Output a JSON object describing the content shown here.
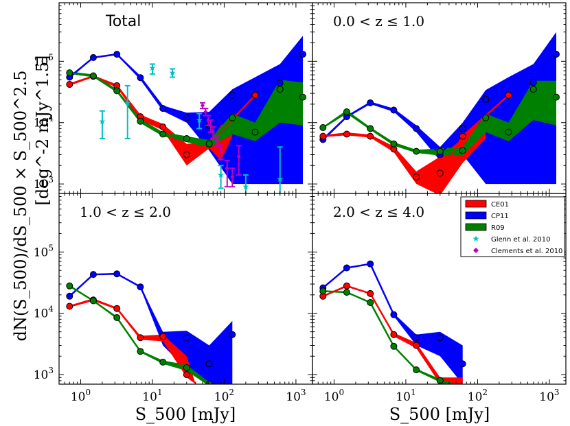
{
  "chart_data": {
    "type": "line",
    "xlabel": "S_500 [mJy]",
    "ylabel_left_units": "[deg^-2 mJy^1.5]",
    "ylabel_formula": "dN(S_500)/dS_500 × S_500^2.5",
    "xscale": "log",
    "yscale": "log",
    "xlim": [
      0.5,
      1700
    ],
    "ylim_total": [
      700,
      900000
    ],
    "ylim_lower": [
      700,
      900000
    ],
    "x_ticks": [
      {
        "value": 1,
        "base": "10",
        "exp": "0"
      },
      {
        "value": 10,
        "base": "10",
        "exp": "1"
      },
      {
        "value": 100,
        "base": "10",
        "exp": "2"
      },
      {
        "value": 1000,
        "base": "10",
        "exp": "3"
      }
    ],
    "y_ticks": [
      {
        "value": 1000,
        "base": "10",
        "exp": "3"
      },
      {
        "value": 10000,
        "base": "10",
        "exp": "4"
      },
      {
        "value": 100000,
        "base": "10",
        "exp": "5"
      }
    ],
    "legend": [
      {
        "label": "CE01",
        "color": "#ff0000",
        "kind": "band"
      },
      {
        "label": "CP11",
        "color": "#0000ff",
        "kind": "band"
      },
      {
        "label": "R09",
        "color": "#008000",
        "kind": "band"
      },
      {
        "label": "Glenn et al. 2010",
        "color": "#00bfbf",
        "kind": "star"
      },
      {
        "label": "Clements et al. 2010",
        "color": "#bf00bf",
        "kind": "diamond"
      }
    ],
    "panels": [
      {
        "label": "Total",
        "label_style": "sans",
        "series": [
          {
            "name": "CE01",
            "color": "#ff0000",
            "x": [
              0.7,
              1.5,
              3.2,
              6.8,
              14,
              30,
              62,
              130,
              270
            ],
            "y": [
              42000,
              57000,
              40000,
              12500,
              8500,
              3000,
              4500,
              null,
              28000
            ],
            "band_x": [
              0.7,
              1.5,
              3.2,
              6.8,
              14,
              30,
              62,
              90,
              130
            ],
            "band_lo": [
              40000,
              55000,
              37000,
              11000,
              7500,
              2000,
              3800,
              2400,
              6000
            ],
            "band_hi": [
              44000,
              59000,
              42000,
              13500,
              9500,
              4500,
              4800,
              9000,
              11500
            ]
          },
          {
            "name": "CP11",
            "color": "#0000ff",
            "x": [
              0.7,
              1.5,
              3.2,
              6.8,
              14,
              30,
              62,
              130,
              600,
              1250
            ],
            "y": [
              55000,
              115000,
              130000,
              54000,
              17000,
              12000,
              9000,
              28000,
              44000,
              130000
            ],
            "band_x": [
              0.7,
              1.5,
              3.2,
              6.8,
              14,
              30,
              62,
              130,
              600,
              1250
            ],
            "band_lo": [
              52000,
              112000,
              126000,
              50000,
              15500,
              10000,
              3500,
              1000,
              1000,
              1000
            ],
            "band_hi": [
              58000,
              118000,
              135000,
              58000,
              19000,
              14500,
              15000,
              35000,
              90000,
              260000
            ]
          },
          {
            "name": "R09",
            "color": "#008000",
            "x": [
              0.7,
              1.5,
              3.2,
              6.8,
              14,
              30,
              62,
              130,
              270,
              600,
              1250
            ],
            "y": [
              65000,
              58000,
              33000,
              10500,
              6500,
              5500,
              4500,
              12000,
              7000,
              35000,
              26000
            ],
            "band_x": [
              0.7,
              1.5,
              3.2,
              6.8,
              14,
              30,
              62,
              130,
              270,
              600,
              1250
            ],
            "band_lo": [
              62000,
              55000,
              31000,
              9800,
              6000,
              4800,
              3900,
              6500,
              5000,
              10000,
              9000
            ],
            "band_hi": [
              68000,
              61000,
              35000,
              11500,
              7000,
              6000,
              5200,
              14000,
              10000,
              50000,
              45000
            ]
          }
        ],
        "markers": [
          {
            "name": "Glenn et al. 2010",
            "color": "#00bfbf",
            "symbol": "star",
            "x": [
              2,
              4.5,
              10,
              19,
              45,
              90,
              200,
              600
            ],
            "y": [
              10500,
              21000,
              78000,
              65000,
              11000,
              1400,
              900,
              1200
            ],
            "y_lo": [
              5500,
              5500,
              62000,
              55000,
              8000,
              850,
              600,
              600
            ],
            "y_hi": [
              15500,
              40000,
              90000,
              75000,
              14000,
              2000,
              1400,
              4000
            ]
          },
          {
            "name": "Clements et al. 2010",
            "color": "#bf00bf",
            "symbol": "diamond",
            "x": [
              50,
              55,
              60,
              65,
              70,
              80,
              90,
              110,
              130,
              160
            ],
            "y": [
              19000,
              15000,
              11000,
              9000,
              7000,
              5000,
              3500,
              1800,
              1300,
              2800
            ],
            "y_lo": [
              17000,
              13000,
              9000,
              7000,
              5500,
              4000,
              2500,
              900,
              900,
              1400
            ],
            "y_hi": [
              21000,
              17000,
              13000,
              11000,
              8500,
              6000,
              4500,
              2400,
              1800,
              4200
            ]
          }
        ]
      },
      {
        "label": "0.0 < z ≤ 1.0",
        "label_style": "serif",
        "series": [
          {
            "name": "CE01",
            "color": "#ff0000",
            "x": [
              0.7,
              1.5,
              3.2,
              6.8,
              14,
              30,
              62,
              130,
              270
            ],
            "y": [
              6000,
              6500,
              6000,
              3700,
              1300,
              1500,
              6000,
              null,
              28000
            ],
            "band_x": [
              0.7,
              1.5,
              3.2,
              6.8,
              14,
              30,
              62,
              90,
              130
            ],
            "band_lo": [
              5800,
              6200,
              5700,
              3300,
              1000,
              650,
              2200,
              3500,
              5500
            ],
            "band_hi": [
              6300,
              6900,
              6400,
              4100,
              1600,
              2800,
              5500,
              9000,
              11000
            ]
          },
          {
            "name": "CP11",
            "color": "#0000ff",
            "x": [
              0.7,
              1.5,
              3.2,
              6.8,
              14,
              30,
              62,
              130,
              270,
              600,
              1250
            ],
            "y": [
              5300,
              12500,
              21000,
              16000,
              8000,
              3000,
              8000,
              24000,
              28000,
              45000,
              130000
            ],
            "band_x": [
              0.7,
              1.5,
              3.2,
              6.8,
              14,
              30,
              62,
              130,
              270,
              600,
              1250
            ],
            "band_lo": [
              5000,
              12000,
              20000,
              15000,
              7000,
              2400,
              3000,
              1000,
              1000,
              1000,
              1000
            ],
            "band_hi": [
              5600,
              13000,
              22000,
              17000,
              9000,
              4000,
              10000,
              34000,
              55000,
              90000,
              300000
            ]
          },
          {
            "name": "R09",
            "color": "#008000",
            "x": [
              0.7,
              1.5,
              3.2,
              6.8,
              14,
              30,
              62,
              130,
              270,
              600,
              1250
            ],
            "y": [
              8300,
              15000,
              8000,
              4500,
              3400,
              3400,
              3500,
              12000,
              7000,
              35000,
              26000
            ],
            "band_x": [
              0.7,
              1.5,
              3.2,
              6.8,
              14,
              30,
              62,
              130,
              270,
              600,
              1250
            ],
            "band_lo": [
              8000,
              14000,
              7600,
              4200,
              3200,
              2900,
              2900,
              7000,
              5000,
              11000,
              9000
            ],
            "band_hi": [
              8600,
              16000,
              8400,
              4800,
              3600,
              3800,
              4000,
              14000,
              10000,
              48000,
              48000
            ]
          }
        ],
        "markers": []
      },
      {
        "label": "1.0 < z ≤ 2.0",
        "label_style": "serif",
        "series": [
          {
            "name": "CE01",
            "color": "#ff0000",
            "x": [
              0.7,
              1.5,
              3.2,
              6.8,
              14,
              30
            ],
            "y": [
              13000,
              16500,
              12000,
              4000,
              4200,
              1000
            ],
            "band_x": [
              0.7,
              1.5,
              3.2,
              6.8,
              14,
              30,
              40
            ],
            "band_lo": [
              12500,
              16000,
              11500,
              3700,
              3500,
              900,
              700
            ],
            "band_hi": [
              13500,
              17500,
              12500,
              4300,
              4500,
              2000,
              700
            ]
          },
          {
            "name": "CP11",
            "color": "#0000ff",
            "x": [
              0.7,
              1.5,
              3.2,
              6.8,
              14,
              30,
              62,
              130
            ],
            "y": [
              19000,
              43000,
              44000,
              27000,
              4300,
              4000,
              1500,
              4500
            ],
            "band_x": [
              0.7,
              1.5,
              3.2,
              6.8,
              14,
              30,
              62,
              130
            ],
            "band_lo": [
              18500,
              42000,
              43000,
              26000,
              3000,
              1200,
              700,
              700
            ],
            "band_hi": [
              19500,
              44000,
              45500,
              28000,
              5000,
              5200,
              3000,
              7500
            ]
          },
          {
            "name": "R09",
            "color": "#008000",
            "x": [
              0.7,
              1.5,
              3.2,
              6.8,
              14,
              30,
              62
            ],
            "y": [
              28000,
              16000,
              8500,
              2400,
              1600,
              1300,
              700
            ],
            "band_x": [
              0.7,
              1.5,
              3.2,
              6.8,
              14,
              30,
              62
            ],
            "band_lo": [
              27000,
              15500,
              8100,
              2300,
              1500,
              1150,
              650
            ],
            "band_hi": [
              29000,
              16500,
              8900,
              2500,
              1700,
              1450,
              750
            ]
          }
        ],
        "markers": []
      },
      {
        "label": "2.0 < z ≤ 4.0",
        "label_style": "serif",
        "series": [
          {
            "name": "CE01",
            "color": "#ff0000",
            "x": [
              0.7,
              1.5,
              3.2,
              6.8,
              14,
              30
            ],
            "y": [
              19000,
              28000,
              21000,
              4500,
              3000,
              800
            ],
            "band_x": [
              0.7,
              1.5,
              3.2,
              6.8,
              14,
              30,
              62
            ],
            "band_lo": [
              18500,
              27000,
              20500,
              4200,
              2700,
              700,
              700
            ],
            "band_hi": [
              19500,
              29000,
              21500,
              4800,
              3300,
              900,
              900
            ]
          },
          {
            "name": "CP11",
            "color": "#0000ff",
            "x": [
              0.7,
              1.5,
              3.2,
              6.8,
              14,
              30,
              62
            ],
            "y": [
              26000,
              55000,
              64000,
              9500,
              4000,
              4000,
              1500
            ],
            "band_x": [
              0.7,
              1.5,
              3.2,
              6.8,
              14,
              30,
              62
            ],
            "band_lo": [
              25500,
              54000,
              63000,
              9000,
              3000,
              2000,
              700
            ],
            "band_hi": [
              26500,
              56000,
              65000,
              10000,
              4500,
              5000,
              3000
            ]
          },
          {
            "name": "R09",
            "color": "#008000",
            "x": [
              0.7,
              1.5,
              3.2,
              6.8,
              14,
              30,
              62
            ],
            "y": [
              23000,
              22000,
              15000,
              2900,
              1200,
              800,
              600
            ],
            "band_x": [
              0.7,
              1.5,
              3.2,
              6.8,
              14,
              30,
              62
            ],
            "band_lo": [
              22500,
              21500,
              14500,
              2800,
              1150,
              750,
              600
            ],
            "band_hi": [
              23500,
              22500,
              15500,
              3000,
              1250,
              850,
              650
            ]
          }
        ],
        "markers": []
      }
    ]
  }
}
